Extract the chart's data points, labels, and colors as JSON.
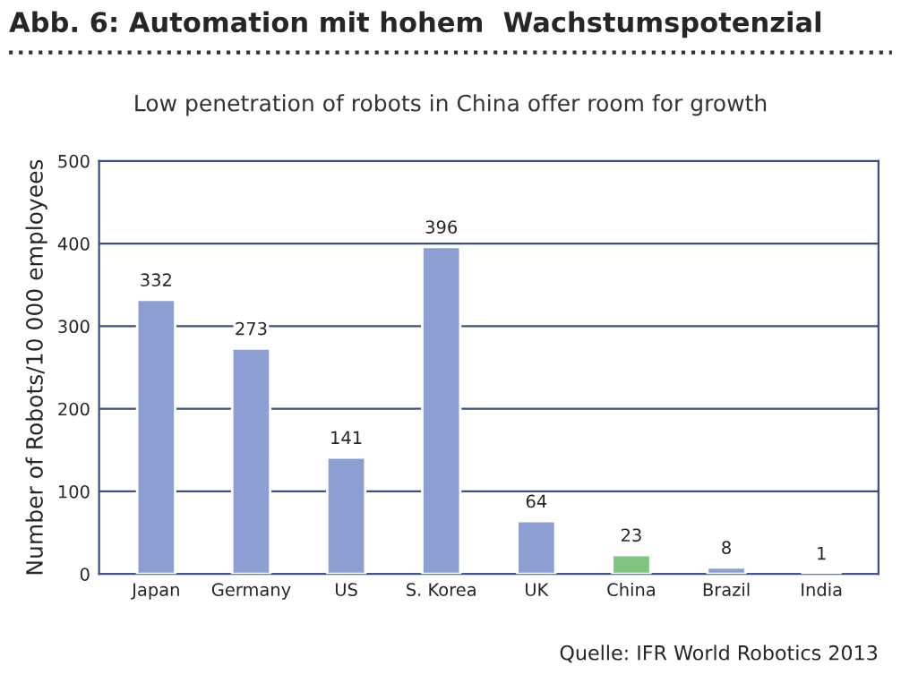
{
  "chart_data": {
    "type": "bar",
    "title": "Abb. 6: Automation mit hohem  Wachstumspotenzial",
    "subtitle": "Low penetration of robots in China offer room for growth",
    "ylabel": "Number of Robots/10 000 employees",
    "categories": [
      "Japan",
      "Germany",
      "US",
      "S. Korea",
      "UK",
      "China",
      "Brazil",
      "India"
    ],
    "values": [
      332,
      273,
      141,
      396,
      64,
      23,
      8,
      1
    ],
    "colors": [
      "#8d9ed3",
      "#8d9ed3",
      "#8d9ed3",
      "#8d9ed3",
      "#8d9ed3",
      "#7fc47f",
      "#8d9ed3",
      "#8d9ed3"
    ],
    "ylim": [
      0,
      500
    ],
    "yticks": [
      0,
      100,
      200,
      300,
      400,
      500
    ],
    "grid": "y",
    "data_labels": true,
    "annotations": [
      "Quelle: IFR World Robotics 2013"
    ]
  }
}
